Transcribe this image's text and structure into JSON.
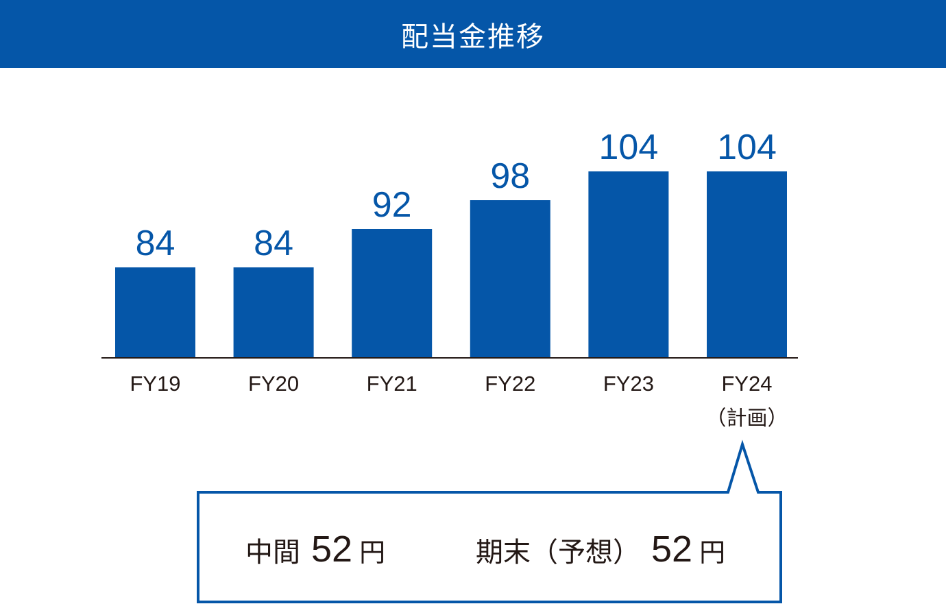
{
  "header": {
    "title": "配当金推移"
  },
  "colors": {
    "accent": "#0556a8",
    "text": "#231815",
    "axis": "#231815"
  },
  "chart_data": {
    "type": "bar",
    "title": "配当金推移",
    "categories": [
      "FY19",
      "FY20",
      "FY21",
      "FY22",
      "FY23",
      "FY24"
    ],
    "category_notes": [
      "",
      "",
      "",
      "",
      "",
      "（計画）"
    ],
    "values": [
      84,
      84,
      92,
      98,
      104,
      104
    ],
    "data_labels": [
      "84",
      "84",
      "92",
      "98",
      "104",
      "104"
    ],
    "xlabel": "",
    "ylabel": "",
    "ylim": [
      0,
      104
    ],
    "grid": false,
    "legend": "none"
  },
  "callout": {
    "interim_label": "中間",
    "interim_value": "52",
    "interim_unit": "円",
    "final_label": "期末（予想）",
    "final_value": "52",
    "final_unit": "円"
  }
}
